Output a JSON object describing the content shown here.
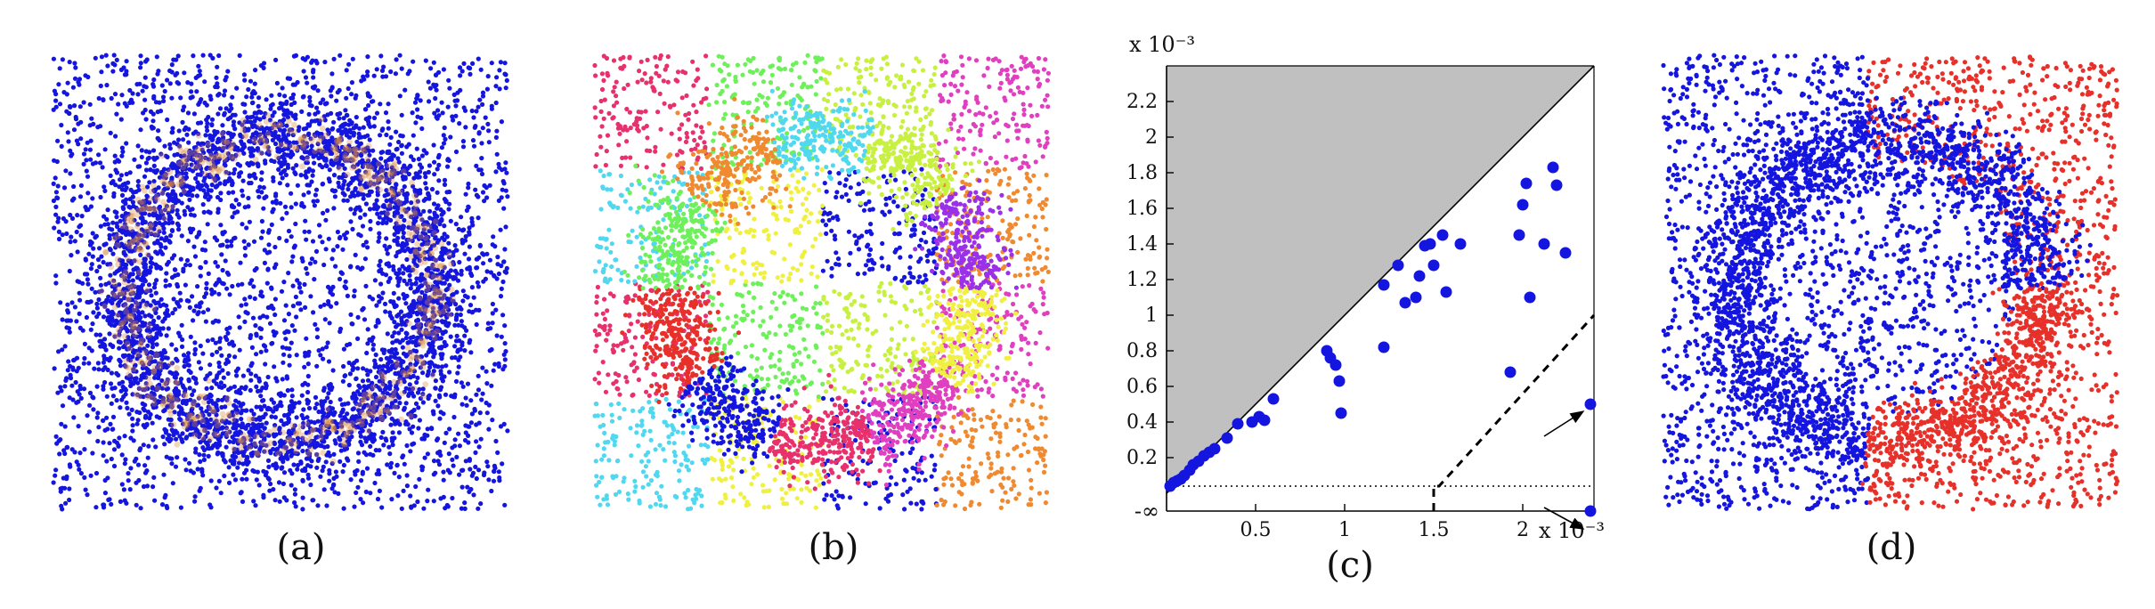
{
  "figure": {
    "panels": [
      {
        "id": "a",
        "caption": "(a)"
      },
      {
        "id": "b",
        "caption": "(b)"
      },
      {
        "id": "c",
        "caption": "(c)"
      },
      {
        "id": "d",
        "caption": "(d)"
      }
    ]
  },
  "colors": {
    "blue": "#1515e0",
    "red": "#e8302a",
    "ring_orange": "#d98a36",
    "gray_region": "#c0c0c0",
    "cluster_palette": [
      "#e8306c",
      "#1515e0",
      "#e8302a",
      "#6ef05a",
      "#f08a30",
      "#50d8f0",
      "#c8f040",
      "#9a30e8",
      "#f0f040",
      "#e040c0"
    ]
  },
  "chart_data": {
    "type": "scatter",
    "x_scale_label": "x 10⁻³",
    "y_scale_label": "x 10⁻³",
    "xlim": [
      0,
      2.4
    ],
    "ylim": [
      0,
      2.4
    ],
    "x_ticks": [
      {
        "value": 0.5,
        "label": "0.5"
      },
      {
        "value": 1.0,
        "label": "1"
      },
      {
        "value": 1.5,
        "label": "1.5"
      },
      {
        "value": 2.0,
        "label": "2"
      }
    ],
    "y_ticks": [
      {
        "value": 0.2,
        "label": "0.2"
      },
      {
        "value": 0.4,
        "label": "0.4"
      },
      {
        "value": 0.6,
        "label": "0.6"
      },
      {
        "value": 0.8,
        "label": "0.8"
      },
      {
        "value": 1.0,
        "label": "1"
      },
      {
        "value": 1.2,
        "label": "1.2"
      },
      {
        "value": 1.4,
        "label": "1.4"
      },
      {
        "value": 1.6,
        "label": "1.6"
      },
      {
        "value": 1.8,
        "label": "1.8"
      },
      {
        "value": 2.0,
        "label": "2"
      },
      {
        "value": 2.2,
        "label": "2.2"
      }
    ],
    "y_neg_inf_label": "-∞",
    "diagonal": true,
    "points": [
      {
        "x": 0.02,
        "y": 0.04
      },
      {
        "x": 0.04,
        "y": 0.06
      },
      {
        "x": 0.06,
        "y": 0.07
      },
      {
        "x": 0.08,
        "y": 0.08
      },
      {
        "x": 0.1,
        "y": 0.1
      },
      {
        "x": 0.13,
        "y": 0.13
      },
      {
        "x": 0.15,
        "y": 0.16
      },
      {
        "x": 0.18,
        "y": 0.18
      },
      {
        "x": 0.21,
        "y": 0.21
      },
      {
        "x": 0.24,
        "y": 0.23
      },
      {
        "x": 0.27,
        "y": 0.25
      },
      {
        "x": 0.34,
        "y": 0.31
      },
      {
        "x": 0.4,
        "y": 0.39
      },
      {
        "x": 0.48,
        "y": 0.4
      },
      {
        "x": 0.52,
        "y": 0.43
      },
      {
        "x": 0.55,
        "y": 0.41
      },
      {
        "x": 0.6,
        "y": 0.53
      },
      {
        "x": 0.9,
        "y": 0.8
      },
      {
        "x": 0.92,
        "y": 0.76
      },
      {
        "x": 0.95,
        "y": 0.72
      },
      {
        "x": 0.97,
        "y": 0.63
      },
      {
        "x": 0.98,
        "y": 0.45
      },
      {
        "x": 1.22,
        "y": 0.82
      },
      {
        "x": 1.22,
        "y": 1.17
      },
      {
        "x": 1.3,
        "y": 1.28
      },
      {
        "x": 1.34,
        "y": 1.07
      },
      {
        "x": 1.4,
        "y": 1.1
      },
      {
        "x": 1.42,
        "y": 1.22
      },
      {
        "x": 1.45,
        "y": 1.39
      },
      {
        "x": 1.48,
        "y": 1.4
      },
      {
        "x": 1.5,
        "y": 1.28
      },
      {
        "x": 1.55,
        "y": 1.45
      },
      {
        "x": 1.57,
        "y": 1.13
      },
      {
        "x": 1.65,
        "y": 1.4
      },
      {
        "x": 1.93,
        "y": 0.68
      },
      {
        "x": 1.98,
        "y": 1.45
      },
      {
        "x": 2.0,
        "y": 1.62
      },
      {
        "x": 2.02,
        "y": 1.74
      },
      {
        "x": 2.04,
        "y": 1.1
      },
      {
        "x": 2.12,
        "y": 1.4
      },
      {
        "x": 2.17,
        "y": 1.83
      },
      {
        "x": 2.19,
        "y": 1.73
      },
      {
        "x": 2.24,
        "y": 1.35
      },
      {
        "x": 2.38,
        "y": 0.5
      },
      {
        "x": 2.38,
        "y": -0.02
      }
    ],
    "dashed_line": true,
    "dotted_line_y": 0.04
  }
}
